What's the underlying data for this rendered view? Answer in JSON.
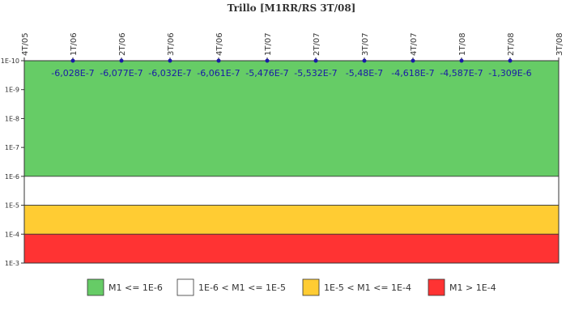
{
  "chart_data": {
    "type": "line",
    "title": "Trillo [M1RR/RS 3T/08]",
    "categories": [
      "4T/05",
      "1T/06",
      "2T/06",
      "3T/06",
      "4T/06",
      "1T/07",
      "2T/07",
      "3T/07",
      "4T/07",
      "1T/08",
      "2T/08",
      "3T/08"
    ],
    "series": [
      {
        "color": "#1a1aa6",
        "values": [
          null,
          -6.028e-07,
          -6.077e-07,
          -6.032e-07,
          -6.061e-07,
          -5.476e-07,
          -5.532e-07,
          -5.48e-07,
          -4.618e-07,
          -4.587e-07,
          -1.309e-06,
          null
        ],
        "value_labels": [
          null,
          "-6,028E-7",
          "-6,077E-7",
          "-6,032E-7",
          "-6,061E-7",
          "-5,476E-7",
          "-5,532E-7",
          "-5,48E-7",
          "-4,618E-7",
          "-4,587E-7",
          "-1,309E-6",
          null
        ]
      }
    ],
    "ylim": [
      1e-10,
      0.001
    ],
    "y_log_scale": true,
    "y_reversed": true,
    "yticks": [
      {
        "value": 1e-10,
        "label": "1E-10"
      },
      {
        "value": 1e-09,
        "label": "1E-9"
      },
      {
        "value": 1e-08,
        "label": "1E-8"
      },
      {
        "value": 1e-07,
        "label": "1E-7"
      },
      {
        "value": 1e-06,
        "label": "1E-6"
      },
      {
        "value": 1e-05,
        "label": "1E-5"
      },
      {
        "value": 0.0001,
        "label": "1E-4"
      },
      {
        "value": 0.001,
        "label": "1E-3"
      }
    ],
    "bands": [
      {
        "name": "M1 <= 1E-6",
        "color": "#66cc66",
        "range": [
          1e-10,
          1e-06
        ]
      },
      {
        "name": "1E-6 < M1 <= 1E-5",
        "color": "#ffffff",
        "range": [
          1e-06,
          1e-05
        ]
      },
      {
        "name": "1E-5 < M1 <= 1E-4",
        "color": "#ffcc33",
        "range": [
          1e-05,
          0.0001
        ]
      },
      {
        "name": "M1 > 1E-4",
        "color": "#ff3333",
        "range": [
          0.0001,
          0.001
        ]
      }
    ]
  }
}
